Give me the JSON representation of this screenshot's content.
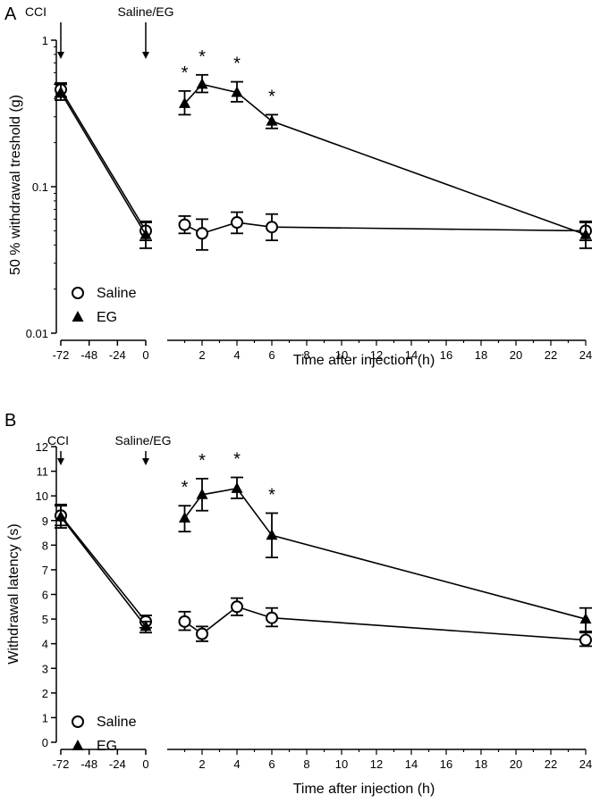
{
  "chart_data": [
    {
      "panel": "A",
      "type": "line",
      "scale": "log",
      "ylabel": "50 % withdrawal treshold (g)",
      "xlabel": "Time after injection (h)",
      "ylim": [
        0.01,
        1
      ],
      "yticks": [
        "0.01",
        "0.1",
        "1"
      ],
      "x_left_ticks": [
        "-72",
        "-48",
        "-24",
        "0"
      ],
      "x_right_ticks": [
        "2",
        "4",
        "6",
        "8",
        "10",
        "12",
        "14",
        "16",
        "18",
        "20",
        "22",
        "24"
      ],
      "annotations": [
        "CCI",
        "Saline/EG"
      ],
      "legend": [
        "Saline",
        "EG"
      ],
      "series": [
        {
          "name": "Saline",
          "marker": "circle-open",
          "points": [
            {
              "x": -72,
              "y": 0.46,
              "lo": 0.41,
              "hi": 0.51
            },
            {
              "x": 0,
              "y": 0.05,
              "lo": 0.043,
              "hi": 0.058
            },
            {
              "x": 1,
              "y": 0.055,
              "lo": 0.048,
              "hi": 0.063
            },
            {
              "x": 2,
              "y": 0.048,
              "lo": 0.037,
              "hi": 0.06
            },
            {
              "x": 4,
              "y": 0.057,
              "lo": 0.048,
              "hi": 0.067
            },
            {
              "x": 6,
              "y": 0.053,
              "lo": 0.043,
              "hi": 0.065
            },
            {
              "x": 24,
              "y": 0.05,
              "lo": 0.043,
              "hi": 0.058
            }
          ]
        },
        {
          "name": "EG",
          "marker": "triangle-filled",
          "points": [
            {
              "x": -72,
              "y": 0.44,
              "lo": 0.39,
              "hi": 0.5
            },
            {
              "x": 0,
              "y": 0.047,
              "lo": 0.038,
              "hi": 0.057
            },
            {
              "x": 1,
              "y": 0.37,
              "lo": 0.31,
              "hi": 0.45
            },
            {
              "x": 2,
              "y": 0.5,
              "lo": 0.44,
              "hi": 0.58
            },
            {
              "x": 4,
              "y": 0.44,
              "lo": 0.38,
              "hi": 0.52
            },
            {
              "x": 6,
              "y": 0.28,
              "lo": 0.25,
              "hi": 0.31
            },
            {
              "x": 24,
              "y": 0.047,
              "lo": 0.038,
              "hi": 0.057
            }
          ]
        }
      ],
      "significance_at_x": [
        1,
        2,
        4,
        6
      ],
      "significance_marker": "*"
    },
    {
      "panel": "B",
      "type": "line",
      "scale": "linear",
      "ylabel": "Withdrawal latency (s)",
      "xlabel": "Time after injection (h)",
      "ylim": [
        0,
        12
      ],
      "yticks": [
        "0",
        "1",
        "2",
        "3",
        "4",
        "5",
        "6",
        "7",
        "8",
        "9",
        "10",
        "11",
        "12"
      ],
      "x_left_ticks": [
        "-72",
        "-48",
        "-24",
        "0"
      ],
      "x_right_ticks": [
        "2",
        "4",
        "6",
        "8",
        "10",
        "12",
        "14",
        "16",
        "18",
        "20",
        "22",
        "24"
      ],
      "annotations": [
        "CCI",
        "Saline/EG"
      ],
      "legend": [
        "Saline",
        "EG"
      ],
      "series": [
        {
          "name": "Saline",
          "marker": "circle-open",
          "points": [
            {
              "x": -72,
              "y": 9.2,
              "lo": 8.8,
              "hi": 9.6
            },
            {
              "x": 0,
              "y": 4.9,
              "lo": 4.65,
              "hi": 5.15
            },
            {
              "x": 1,
              "y": 4.9,
              "lo": 4.55,
              "hi": 5.3
            },
            {
              "x": 2,
              "y": 4.4,
              "lo": 4.1,
              "hi": 4.7
            },
            {
              "x": 4,
              "y": 5.5,
              "lo": 5.15,
              "hi": 5.85
            },
            {
              "x": 6,
              "y": 5.05,
              "lo": 4.7,
              "hi": 5.45
            },
            {
              "x": 24,
              "y": 4.15,
              "lo": 3.9,
              "hi": 4.45
            }
          ]
        },
        {
          "name": "EG",
          "marker": "triangle-filled",
          "points": [
            {
              "x": -72,
              "y": 9.15,
              "lo": 8.7,
              "hi": 9.65
            },
            {
              "x": 0,
              "y": 4.7,
              "lo": 4.45,
              "hi": 4.9
            },
            {
              "x": 1,
              "y": 9.1,
              "lo": 8.55,
              "hi": 9.6
            },
            {
              "x": 2,
              "y": 10.05,
              "lo": 9.4,
              "hi": 10.7
            },
            {
              "x": 4,
              "y": 10.3,
              "lo": 9.9,
              "hi": 10.75
            },
            {
              "x": 6,
              "y": 8.4,
              "lo": 7.5,
              "hi": 9.3
            },
            {
              "x": 24,
              "y": 5.0,
              "lo": 4.5,
              "hi": 5.45
            }
          ]
        }
      ],
      "significance_at_x": [
        1,
        2,
        4,
        6
      ],
      "significance_marker": "*"
    }
  ]
}
